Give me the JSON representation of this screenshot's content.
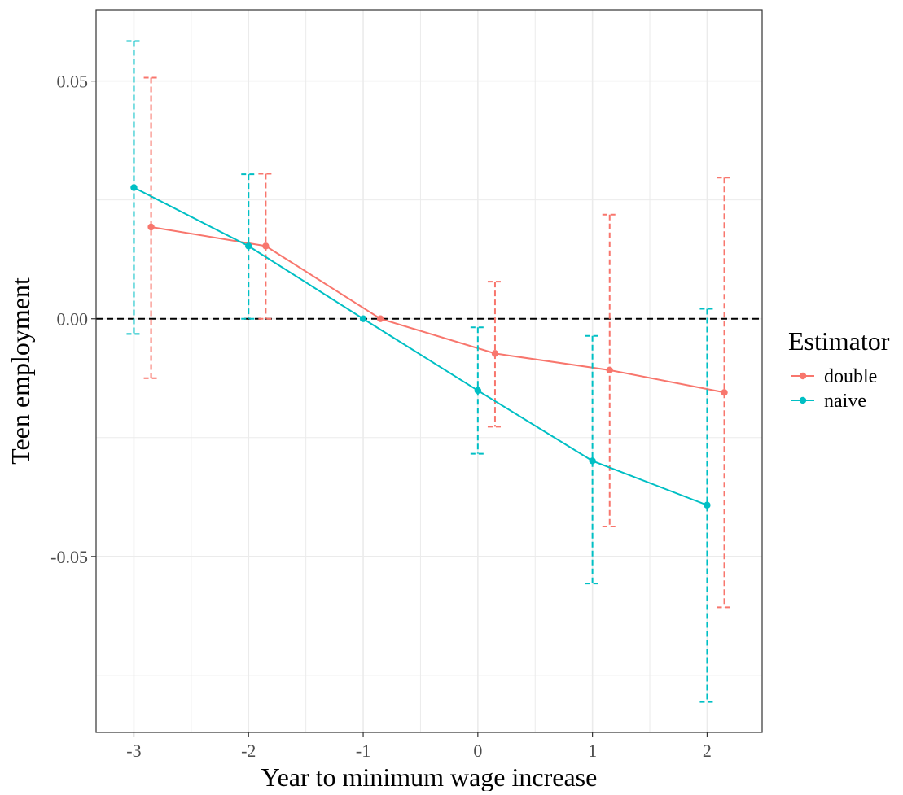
{
  "chart_data": {
    "type": "line",
    "xlabel": "Year to minimum wage increase",
    "ylabel": "Teen employment",
    "x_ticks": [
      "-3",
      "-2",
      "-1",
      "0",
      "1",
      "2"
    ],
    "y_ticks": [
      "-0.05",
      "0.00",
      "0.05"
    ],
    "xlim": [
      -3.33,
      2.48
    ],
    "ylim": [
      -0.087,
      0.065
    ],
    "grid": true,
    "reference_line": {
      "y": 0,
      "style": "dashed"
    },
    "legend": {
      "title": "Estimator",
      "position": "right"
    },
    "series": [
      {
        "name": "double",
        "color": "#F8766D",
        "x_offset": 0.15,
        "x": [
          -3,
          -2,
          -1,
          0,
          1,
          2
        ],
        "y": [
          0.0193,
          0.0153,
          0.0,
          -0.0073,
          -0.0108,
          -0.0155
        ],
        "ci_low": [
          -0.0125,
          0.0,
          0.0,
          -0.0227,
          -0.0437,
          -0.0607
        ],
        "ci_high": [
          0.0507,
          0.0305,
          0.0,
          0.0078,
          0.0219,
          0.0297
        ]
      },
      {
        "name": "naive",
        "color": "#00BFC4",
        "x_offset": 0.0,
        "x": [
          -3,
          -2,
          -1,
          0,
          1,
          2
        ],
        "y": [
          0.0276,
          0.0153,
          0.0,
          -0.0151,
          -0.0299,
          -0.0392
        ],
        "ci_low": [
          -0.0032,
          0.0,
          0.0,
          -0.0284,
          -0.0557,
          -0.0806
        ],
        "ci_high": [
          0.0584,
          0.0304,
          0.0,
          -0.0018,
          -0.0036,
          0.0021
        ]
      }
    ]
  }
}
